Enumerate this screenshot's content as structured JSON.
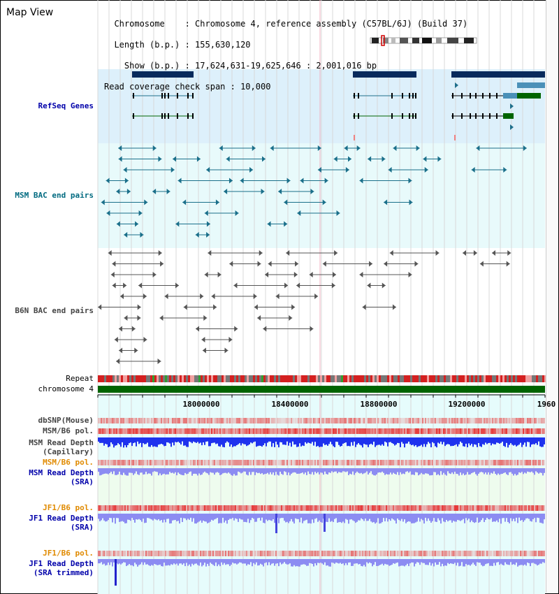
{
  "view": {
    "title": "Map View",
    "info_lines": [
      "  Chromosome    : Chromosome 4, reference assembly (C57BL/6J) (Build 37)",
      "  Length (b.p.) : 155,630,120",
      "    Show (b.p.) : 17,624,631-19,625,646 : 2,001,016 bp",
      "Read coverage check span : 10,000"
    ]
  },
  "tracks": {
    "refseq": "RefSeq Genes",
    "msm_bac": "MSM BAC end pairs",
    "b6n_bac": "B6N BAC end pairs",
    "repeat": "Repeat",
    "chromosome": "chromosome 4",
    "dbsnp": "dbSNP(Mouse)",
    "msm_b6_pol_1": "MSM/B6 pol.",
    "msm_depth_cap_1": "MSM Read Depth",
    "msm_depth_cap_2": "(Capillary)",
    "msm_b6_pol_2": "MSM/B6 pol.",
    "msm_depth_sra_1": "MSM Read Depth",
    "msm_depth_sra_2": "(SRA)",
    "jf1_b6_pol_1": "JF1/B6 pol.",
    "jf1_depth_sra_1": "JF1 Read Depth",
    "jf1_depth_sra_2": "(SRA)",
    "jf1_b6_pol_2": "JF1/B6 pol.",
    "jf1_depth_trim_1": "JF1 Read Depth",
    "jf1_depth_trim_2": "(SRA trimmed)"
  },
  "ruler": {
    "ticks": [
      "18000000",
      "18400000",
      "18800000",
      "19200000",
      "1960"
    ]
  },
  "colors": {
    "refseq_bg": "#ddf0fb",
    "msm_bg": "#e8fafb",
    "gene_dark": "#082a5c",
    "gene_teal": "#1f6f8b",
    "gene_green": "#006400",
    "msm_feature": "#1a6f8a",
    "b6n_feature": "#555555",
    "chromosome_bar": "#006400",
    "depth_blue": "#1e32ee",
    "depth_light": "#8c8cf2",
    "label_blue": "#0000aa",
    "label_teal": "#006a80",
    "label_orange": "#e08a00"
  }
}
